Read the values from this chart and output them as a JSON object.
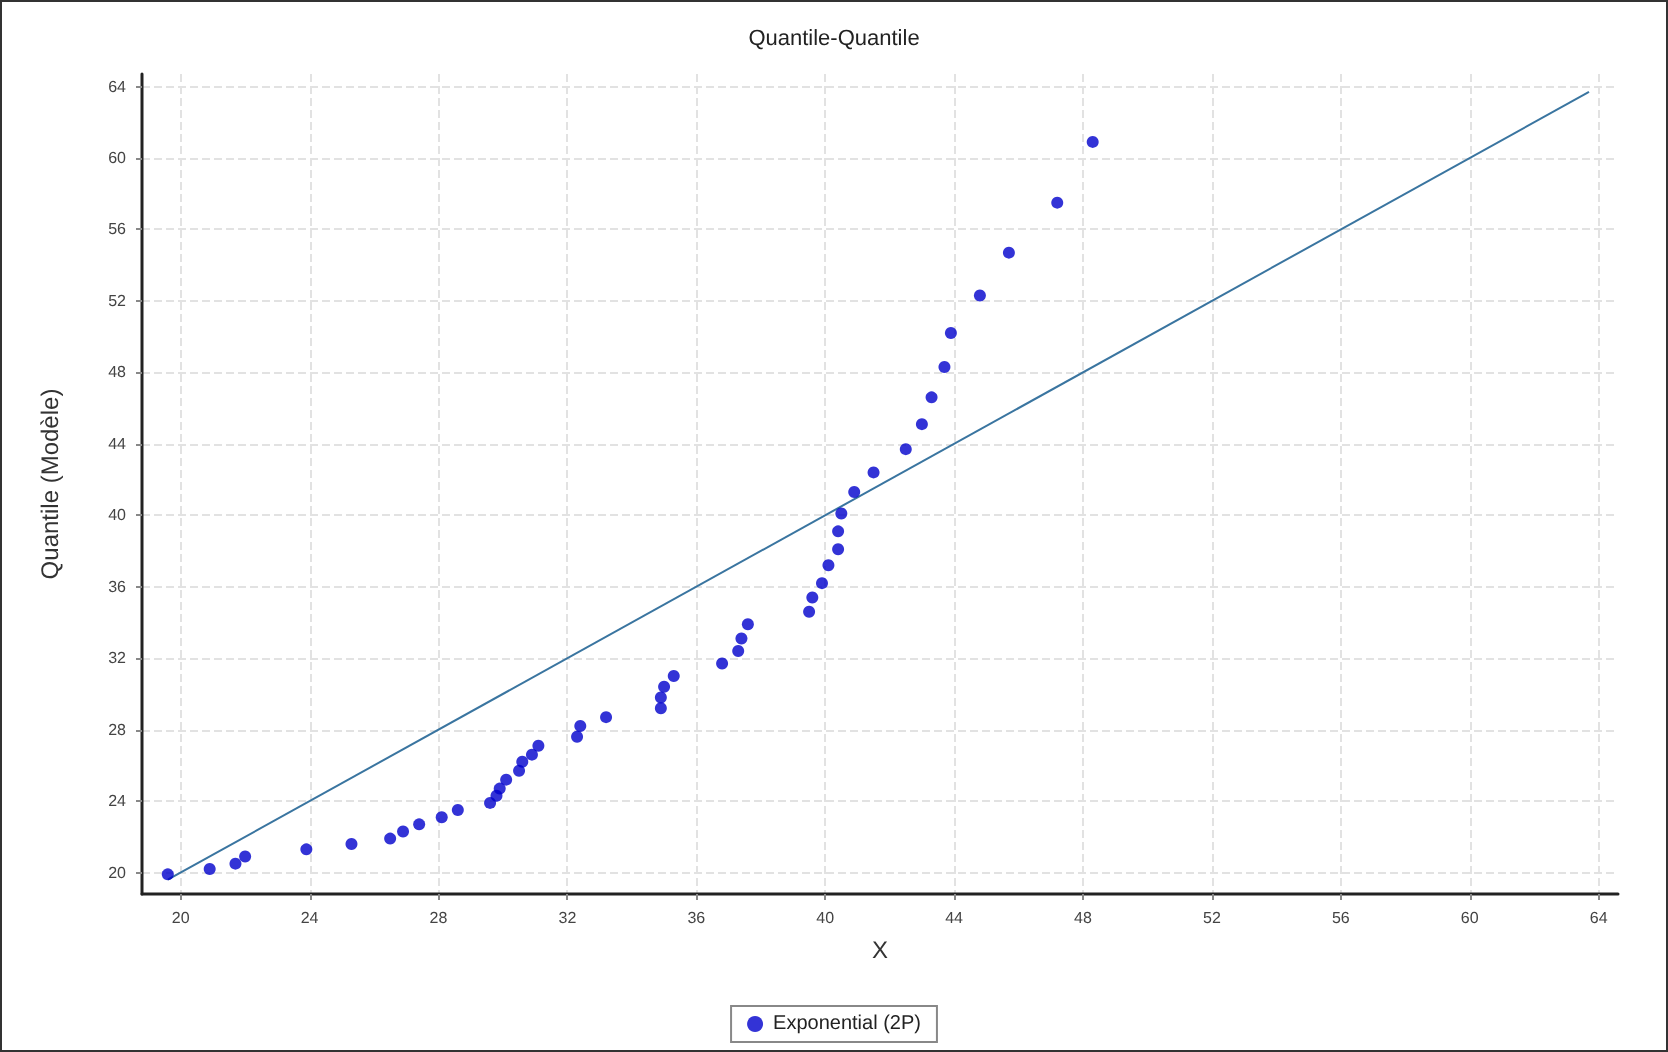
{
  "chart_data": {
    "type": "scatter",
    "title": "Quantile-Quantile",
    "xlabel": "X",
    "ylabel": "Quantile (Modèle)",
    "xlim": [
      18.8,
      64.6
    ],
    "ylim": [
      18.8,
      64.7
    ],
    "xticks": [
      20,
      24,
      28,
      32,
      36,
      40,
      44,
      48,
      52,
      56,
      60,
      64
    ],
    "yticks": [
      20,
      24,
      28,
      32,
      36,
      40,
      44,
      48,
      52,
      56,
      60,
      64
    ],
    "grid": true,
    "legend": "bottom",
    "marker": "circle",
    "series": [
      {
        "name": "Exponential (2P)",
        "color": "#0000cc",
        "x": [
          19.6,
          20.9,
          21.7,
          22.0,
          23.9,
          25.3,
          26.5,
          26.9,
          27.4,
          28.1,
          28.6,
          29.6,
          29.8,
          29.9,
          30.1,
          30.5,
          30.6,
          30.9,
          31.1,
          32.3,
          32.4,
          33.2,
          34.9,
          34.9,
          35.0,
          35.3,
          36.8,
          37.3,
          37.4,
          37.6,
          39.5,
          39.6,
          39.9,
          40.1,
          40.4,
          40.4,
          40.5,
          40.9,
          41.5,
          42.5,
          43.0,
          43.3,
          43.7,
          43.9,
          44.8,
          45.7,
          47.2,
          48.3
        ],
        "values": [
          19.9,
          20.2,
          20.5,
          20.9,
          21.3,
          21.6,
          21.9,
          22.3,
          22.7,
          23.1,
          23.5,
          23.9,
          24.3,
          24.7,
          25.2,
          25.7,
          26.2,
          26.6,
          27.1,
          27.6,
          28.2,
          28.7,
          29.2,
          29.8,
          30.4,
          31.0,
          31.7,
          32.4,
          33.1,
          33.9,
          34.6,
          35.4,
          36.2,
          37.2,
          38.1,
          39.1,
          40.1,
          41.3,
          42.4,
          43.7,
          45.1,
          46.6,
          48.3,
          50.2,
          52.3,
          54.7,
          57.5,
          60.9
        ]
      },
      {
        "type": "line",
        "color": "#3a75a0",
        "line_style": "solid",
        "marker": "none",
        "x": [
          19.6,
          63.7
        ],
        "values": [
          19.6,
          63.7
        ]
      }
    ]
  }
}
